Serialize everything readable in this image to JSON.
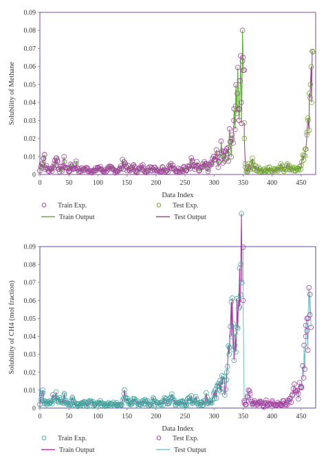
{
  "chart_data": [
    {
      "type": "scatter",
      "xlabel": "Data Index",
      "ylabel": "Solubility of Methane",
      "xlim": [
        0,
        475
      ],
      "ylim": [
        0,
        0.09
      ],
      "xticks": [
        "0",
        "50",
        "100",
        "150",
        "200",
        "250",
        "300",
        "350",
        "400",
        "450"
      ],
      "yticks": [
        "0",
        "0.01",
        "0.02",
        "0.03",
        "0.04",
        "0.05",
        "0.06",
        "0.07",
        "0.08",
        "0.09"
      ],
      "legend": [
        {
          "label": "Train Exp.",
          "kind": "marker",
          "color": "#a0449b"
        },
        {
          "label": "Test Exp.",
          "kind": "marker",
          "color": "#6fa82d"
        },
        {
          "label": "Train Output",
          "kind": "line",
          "color": "#5aae32"
        },
        {
          "label": "Test Output",
          "kind": "line",
          "color": "#a83ca0"
        }
      ],
      "legend_position": "below",
      "train_color": "#a0449b",
      "train_line_color": "#5aae32",
      "test_color": "#6fa82d",
      "test_line_color": "#a83ca0",
      "frame_color": "#7a4a9a",
      "train_samples": [
        [
          0,
          0.002
        ],
        [
          3,
          0.006
        ],
        [
          6,
          0.009
        ],
        [
          8,
          0.011
        ],
        [
          10,
          0.004
        ],
        [
          15,
          0.002
        ],
        [
          20,
          0.003
        ],
        [
          25,
          0.006
        ],
        [
          28,
          0.009
        ],
        [
          30,
          0.008
        ],
        [
          33,
          0.003
        ],
        [
          38,
          0.003
        ],
        [
          42,
          0.007
        ],
        [
          45,
          0.004
        ],
        [
          50,
          0.002
        ],
        [
          55,
          0.005
        ],
        [
          58,
          0.003
        ],
        [
          62,
          0.006
        ],
        [
          68,
          0.002
        ],
        [
          75,
          0.003
        ],
        [
          82,
          0.003
        ],
        [
          88,
          0.002
        ],
        [
          95,
          0.002
        ],
        [
          100,
          0.004
        ],
        [
          105,
          0.003
        ],
        [
          110,
          0.002
        ],
        [
          118,
          0.003
        ],
        [
          124,
          0.003
        ],
        [
          130,
          0.002
        ],
        [
          138,
          0.003
        ],
        [
          145,
          0.007
        ],
        [
          150,
          0.004
        ],
        [
          155,
          0.002
        ],
        [
          160,
          0.005
        ],
        [
          165,
          0.002
        ],
        [
          172,
          0.003
        ],
        [
          178,
          0.004
        ],
        [
          185,
          0.002
        ],
        [
          192,
          0.004
        ],
        [
          198,
          0.004
        ],
        [
          205,
          0.002
        ],
        [
          212,
          0.004
        ],
        [
          218,
          0.002
        ],
        [
          225,
          0.005
        ],
        [
          230,
          0.003
        ],
        [
          236,
          0.002
        ],
        [
          242,
          0.003
        ],
        [
          248,
          0.004
        ],
        [
          252,
          0.002
        ],
        [
          258,
          0.005
        ],
        [
          262,
          0.007
        ],
        [
          266,
          0.003
        ],
        [
          270,
          0.005
        ],
        [
          274,
          0.002
        ],
        [
          280,
          0.004
        ],
        [
          285,
          0.005
        ],
        [
          290,
          0.003
        ],
        [
          295,
          0.006
        ],
        [
          300,
          0.008
        ],
        [
          305,
          0.01
        ],
        [
          308,
          0.007
        ],
        [
          312,
          0.012
        ],
        [
          316,
          0.01
        ],
        [
          320,
          0.013
        ],
        [
          324,
          0.015
        ],
        [
          328,
          0.018
        ],
        [
          331,
          0.022
        ],
        [
          334,
          0.03
        ],
        [
          337,
          0.038
        ],
        [
          340,
          0.045
        ],
        [
          343,
          0.03
        ],
        [
          345,
          0.052
        ],
        [
          347,
          0.04
        ],
        [
          349,
          0.08
        ],
        [
          350,
          0.065
        ],
        [
          352,
          0.058
        ]
      ],
      "test_samples": [
        [
          352,
          0.02
        ],
        [
          354,
          0.004
        ],
        [
          356,
          0.003
        ],
        [
          358,
          0.002
        ],
        [
          360,
          0.006
        ],
        [
          363,
          0.003
        ],
        [
          366,
          0.009
        ],
        [
          370,
          0.005
        ],
        [
          374,
          0.002
        ],
        [
          378,
          0.003
        ],
        [
          382,
          0.002
        ],
        [
          386,
          0.003
        ],
        [
          390,
          0.002
        ],
        [
          395,
          0.004
        ],
        [
          400,
          0.002
        ],
        [
          405,
          0.003
        ],
        [
          410,
          0.002
        ],
        [
          415,
          0.004
        ],
        [
          420,
          0.003
        ],
        [
          425,
          0.005
        ],
        [
          430,
          0.003
        ],
        [
          435,
          0.004
        ],
        [
          440,
          0.002
        ],
        [
          445,
          0.003
        ],
        [
          450,
          0.005
        ],
        [
          454,
          0.008
        ],
        [
          457,
          0.014
        ],
        [
          460,
          0.022
        ],
        [
          462,
          0.03
        ],
        [
          464,
          0.045
        ],
        [
          466,
          0.05
        ],
        [
          468,
          0.04
        ],
        [
          470,
          0.068
        ]
      ]
    },
    {
      "type": "scatter",
      "xlabel": "Data Index",
      "ylabel": "Solubility of CH4 (mol fraction)",
      "xlim": [
        0,
        475
      ],
      "ylim": [
        0,
        0.09
      ],
      "xticks": [
        "0",
        "50",
        "100",
        "150",
        "200",
        "250",
        "300",
        "350",
        "400",
        "450"
      ],
      "yticks": [
        "0",
        "0.01",
        "0.02",
        "0.03",
        "0.04",
        "0.05",
        "0.06",
        "0.07",
        "0.08",
        "0.09"
      ],
      "legend": [
        {
          "label": "Train Exp.",
          "kind": "marker",
          "color": "#3fa59c"
        },
        {
          "label": "Test Exp.",
          "kind": "marker",
          "color": "#a83ca0"
        },
        {
          "label": "Train Output",
          "kind": "line",
          "color": "#a83ca0"
        },
        {
          "label": "Test Output",
          "kind": "line",
          "color": "#7fbfc6"
        }
      ],
      "legend_position": "below",
      "train_color": "#3fa59c",
      "train_line_color": "#a83ca0",
      "test_color": "#a83ca0",
      "test_line_color": "#7fbfc6",
      "frame_color": "#5a4aa8",
      "train_samples": [
        [
          0,
          0.002
        ],
        [
          3,
          0.007
        ],
        [
          5,
          0.01
        ],
        [
          8,
          0.004
        ],
        [
          12,
          0.002
        ],
        [
          18,
          0.003
        ],
        [
          24,
          0.006
        ],
        [
          28,
          0.009
        ],
        [
          32,
          0.004
        ],
        [
          38,
          0.003
        ],
        [
          42,
          0.008
        ],
        [
          46,
          0.003
        ],
        [
          52,
          0.002
        ],
        [
          56,
          0.005
        ],
        [
          60,
          0.003
        ],
        [
          66,
          0.002
        ],
        [
          72,
          0.003
        ],
        [
          80,
          0.002
        ],
        [
          88,
          0.003
        ],
        [
          95,
          0.002
        ],
        [
          102,
          0.003
        ],
        [
          110,
          0.002
        ],
        [
          118,
          0.003
        ],
        [
          125,
          0.002
        ],
        [
          132,
          0.003
        ],
        [
          140,
          0.002
        ],
        [
          145,
          0.008
        ],
        [
          150,
          0.004
        ],
        [
          156,
          0.002
        ],
        [
          162,
          0.005
        ],
        [
          170,
          0.002
        ],
        [
          176,
          0.003
        ],
        [
          182,
          0.004
        ],
        [
          190,
          0.002
        ],
        [
          196,
          0.005
        ],
        [
          202,
          0.003
        ],
        [
          208,
          0.002
        ],
        [
          215,
          0.004
        ],
        [
          222,
          0.003
        ],
        [
          228,
          0.006
        ],
        [
          234,
          0.002
        ],
        [
          240,
          0.003
        ],
        [
          246,
          0.004
        ],
        [
          252,
          0.002
        ],
        [
          258,
          0.006
        ],
        [
          264,
          0.003
        ],
        [
          270,
          0.005
        ],
        [
          276,
          0.002
        ],
        [
          282,
          0.004
        ],
        [
          288,
          0.006
        ],
        [
          294,
          0.003
        ],
        [
          300,
          0.009
        ],
        [
          305,
          0.012
        ],
        [
          310,
          0.01
        ],
        [
          314,
          0.013
        ],
        [
          318,
          0.015
        ],
        [
          322,
          0.02
        ],
        [
          326,
          0.03
        ],
        [
          330,
          0.04
        ],
        [
          333,
          0.047
        ],
        [
          336,
          0.035
        ],
        [
          339,
          0.045
        ],
        [
          342,
          0.06
        ],
        [
          344,
          0.078
        ],
        [
          346,
          0.08
        ],
        [
          348,
          0.07
        ]
      ],
      "test_samples": [
        [
          350,
          0.06
        ],
        [
          352,
          0.003
        ],
        [
          355,
          0.002
        ],
        [
          358,
          0.006
        ],
        [
          362,
          0.008
        ],
        [
          366,
          0.002
        ],
        [
          370,
          0.003
        ],
        [
          375,
          0.002
        ],
        [
          380,
          0.003
        ],
        [
          385,
          0.001
        ],
        [
          390,
          0.003
        ],
        [
          395,
          0.002
        ],
        [
          400,
          0.004
        ],
        [
          405,
          0.002
        ],
        [
          410,
          0.003
        ],
        [
          415,
          0.002
        ],
        [
          420,
          0.004
        ],
        [
          425,
          0.003
        ],
        [
          430,
          0.005
        ],
        [
          435,
          0.007
        ],
        [
          440,
          0.01
        ],
        [
          445,
          0.008
        ],
        [
          450,
          0.012
        ],
        [
          455,
          0.035
        ],
        [
          458,
          0.04
        ],
        [
          460,
          0.043
        ],
        [
          462,
          0.05
        ],
        [
          465,
          0.052
        ],
        [
          467,
          0.045
        ]
      ]
    }
  ]
}
